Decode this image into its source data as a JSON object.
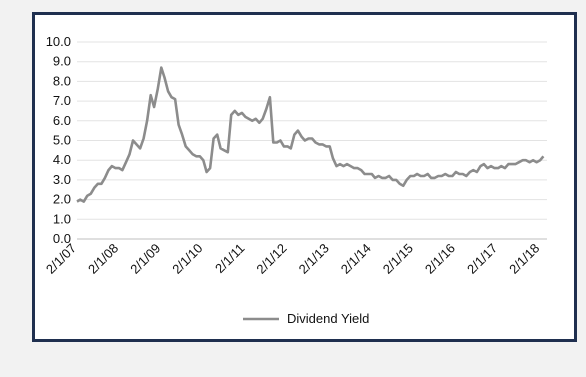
{
  "chart_data": {
    "type": "line",
    "title": "",
    "xlabel": "",
    "ylabel": "",
    "ylim": [
      0,
      10
    ],
    "y_ticks": [
      "0.0",
      "1.0",
      "2.0",
      "3.0",
      "4.0",
      "5.0",
      "6.0",
      "7.0",
      "8.0",
      "9.0",
      "10.0"
    ],
    "x_ticks": [
      "2/1/07",
      "2/1/08",
      "2/1/09",
      "2/1/10",
      "2/1/11",
      "2/1/12",
      "2/1/13",
      "2/1/14",
      "2/1/15",
      "2/1/16",
      "2/1/17",
      "2/1/18"
    ],
    "xlim": [
      "2007-02-01",
      "2018-04-01"
    ],
    "grid": "horizontal",
    "legend_position": "bottom",
    "series": [
      {
        "name": "Dividend Yield",
        "color": "#8c8c8c",
        "points": [
          [
            "2007-02-01",
            1.9
          ],
          [
            "2007-03-01",
            2.0
          ],
          [
            "2007-04-01",
            1.9
          ],
          [
            "2007-05-01",
            2.2
          ],
          [
            "2007-06-01",
            2.3
          ],
          [
            "2007-07-01",
            2.6
          ],
          [
            "2007-08-01",
            2.8
          ],
          [
            "2007-09-01",
            2.8
          ],
          [
            "2007-10-01",
            3.1
          ],
          [
            "2007-11-01",
            3.5
          ],
          [
            "2007-12-01",
            3.7
          ],
          [
            "2008-01-01",
            3.6
          ],
          [
            "2008-02-01",
            3.6
          ],
          [
            "2008-03-01",
            3.5
          ],
          [
            "2008-04-01",
            3.9
          ],
          [
            "2008-05-01",
            4.3
          ],
          [
            "2008-06-01",
            5.0
          ],
          [
            "2008-07-01",
            4.8
          ],
          [
            "2008-08-01",
            4.6
          ],
          [
            "2008-09-01",
            5.1
          ],
          [
            "2008-10-01",
            6.0
          ],
          [
            "2008-11-01",
            7.3
          ],
          [
            "2008-12-01",
            6.7
          ],
          [
            "2009-01-01",
            7.6
          ],
          [
            "2009-02-01",
            8.7
          ],
          [
            "2009-03-01",
            8.2
          ],
          [
            "2009-04-01",
            7.5
          ],
          [
            "2009-05-01",
            7.2
          ],
          [
            "2009-06-01",
            7.1
          ],
          [
            "2009-07-01",
            5.8
          ],
          [
            "2009-08-01",
            5.3
          ],
          [
            "2009-09-01",
            4.7
          ],
          [
            "2009-10-01",
            4.5
          ],
          [
            "2009-11-01",
            4.3
          ],
          [
            "2009-12-01",
            4.2
          ],
          [
            "2010-01-01",
            4.2
          ],
          [
            "2010-02-01",
            4.0
          ],
          [
            "2010-03-01",
            3.4
          ],
          [
            "2010-04-01",
            3.6
          ],
          [
            "2010-05-01",
            5.1
          ],
          [
            "2010-06-01",
            5.3
          ],
          [
            "2010-07-01",
            4.6
          ],
          [
            "2010-08-01",
            4.5
          ],
          [
            "2010-09-01",
            4.4
          ],
          [
            "2010-10-01",
            6.3
          ],
          [
            "2010-11-01",
            6.5
          ],
          [
            "2010-12-01",
            6.3
          ],
          [
            "2011-01-01",
            6.4
          ],
          [
            "2011-02-01",
            6.2
          ],
          [
            "2011-03-01",
            6.1
          ],
          [
            "2011-04-01",
            6.0
          ],
          [
            "2011-05-01",
            6.1
          ],
          [
            "2011-06-01",
            5.9
          ],
          [
            "2011-07-01",
            6.1
          ],
          [
            "2011-08-01",
            6.6
          ],
          [
            "2011-09-01",
            7.2
          ],
          [
            "2011-10-01",
            4.9
          ],
          [
            "2011-11-01",
            4.9
          ],
          [
            "2011-12-01",
            5.0
          ],
          [
            "2012-01-01",
            4.7
          ],
          [
            "2012-02-01",
            4.7
          ],
          [
            "2012-03-01",
            4.6
          ],
          [
            "2012-04-01",
            5.3
          ],
          [
            "2012-05-01",
            5.5
          ],
          [
            "2012-06-01",
            5.2
          ],
          [
            "2012-07-01",
            5.0
          ],
          [
            "2012-08-01",
            5.1
          ],
          [
            "2012-09-01",
            5.1
          ],
          [
            "2012-10-01",
            4.9
          ],
          [
            "2012-11-01",
            4.8
          ],
          [
            "2012-12-01",
            4.8
          ],
          [
            "2013-01-01",
            4.7
          ],
          [
            "2013-02-01",
            4.7
          ],
          [
            "2013-03-01",
            4.1
          ],
          [
            "2013-04-01",
            3.7
          ],
          [
            "2013-05-01",
            3.8
          ],
          [
            "2013-06-01",
            3.7
          ],
          [
            "2013-07-01",
            3.8
          ],
          [
            "2013-08-01",
            3.7
          ],
          [
            "2013-09-01",
            3.6
          ],
          [
            "2013-10-01",
            3.6
          ],
          [
            "2013-11-01",
            3.5
          ],
          [
            "2013-12-01",
            3.3
          ],
          [
            "2014-01-01",
            3.3
          ],
          [
            "2014-02-01",
            3.3
          ],
          [
            "2014-03-01",
            3.1
          ],
          [
            "2014-04-01",
            3.2
          ],
          [
            "2014-05-01",
            3.1
          ],
          [
            "2014-06-01",
            3.1
          ],
          [
            "2014-07-01",
            3.2
          ],
          [
            "2014-08-01",
            3.0
          ],
          [
            "2014-09-01",
            3.0
          ],
          [
            "2014-10-01",
            2.8
          ],
          [
            "2014-11-01",
            2.7
          ],
          [
            "2014-12-01",
            3.0
          ],
          [
            "2015-01-01",
            3.2
          ],
          [
            "2015-02-01",
            3.2
          ],
          [
            "2015-03-01",
            3.3
          ],
          [
            "2015-04-01",
            3.2
          ],
          [
            "2015-05-01",
            3.2
          ],
          [
            "2015-06-01",
            3.3
          ],
          [
            "2015-07-01",
            3.1
          ],
          [
            "2015-08-01",
            3.1
          ],
          [
            "2015-09-01",
            3.2
          ],
          [
            "2015-10-01",
            3.2
          ],
          [
            "2015-11-01",
            3.3
          ],
          [
            "2015-12-01",
            3.2
          ],
          [
            "2016-01-01",
            3.2
          ],
          [
            "2016-02-01",
            3.4
          ],
          [
            "2016-03-01",
            3.3
          ],
          [
            "2016-04-01",
            3.3
          ],
          [
            "2016-05-01",
            3.2
          ],
          [
            "2016-06-01",
            3.4
          ],
          [
            "2016-07-01",
            3.5
          ],
          [
            "2016-08-01",
            3.4
          ],
          [
            "2016-09-01",
            3.7
          ],
          [
            "2016-10-01",
            3.8
          ],
          [
            "2016-11-01",
            3.6
          ],
          [
            "2016-12-01",
            3.7
          ],
          [
            "2017-01-01",
            3.6
          ],
          [
            "2017-02-01",
            3.6
          ],
          [
            "2017-03-01",
            3.7
          ],
          [
            "2017-04-01",
            3.6
          ],
          [
            "2017-05-01",
            3.8
          ],
          [
            "2017-06-01",
            3.8
          ],
          [
            "2017-07-01",
            3.8
          ],
          [
            "2017-08-01",
            3.9
          ],
          [
            "2017-09-01",
            4.0
          ],
          [
            "2017-10-01",
            4.0
          ],
          [
            "2017-11-01",
            3.9
          ],
          [
            "2017-12-01",
            4.0
          ],
          [
            "2018-01-01",
            3.9
          ],
          [
            "2018-02-01",
            4.0
          ],
          [
            "2018-03-01",
            4.2
          ]
        ]
      }
    ]
  }
}
